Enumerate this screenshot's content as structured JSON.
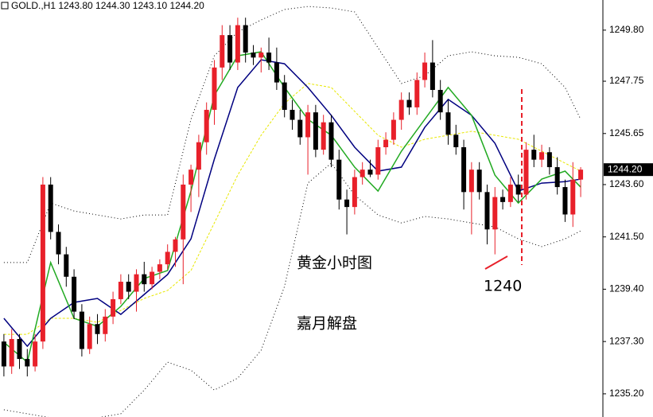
{
  "chart_data": {
    "type": "candlestick",
    "title": "GOLD.,H1  1243.80 1244.30 1243.10 1244.20",
    "annotations": [
      "1240",
      "黄金小时图",
      "嘉月解盘"
    ],
    "up_color": "#e8202a",
    "down_color": "#000000",
    "open": [
      1237.3,
      1236.3,
      1237.4,
      1236.6,
      1236.3,
      1237.3,
      1243.6,
      1241.7,
      1240.8,
      1239.9,
      1238.5,
      1237.0,
      1238.0,
      1237.6,
      1238.3,
      1239.0,
      1239.7,
      1239.3,
      1240.0,
      1239.6,
      1240.1,
      1240.4,
      1240.9,
      1241.4,
      1243.6,
      1244.2,
      1245.3,
      1246.6,
      1248.3,
      1249.6,
      1248.5,
      1250.0,
      1248.9,
      1248.7,
      1248.9,
      1248.5,
      1247.7,
      1246.6,
      1246.2,
      1245.5,
      1246.5,
      1245.0,
      1246.1,
      1244.6,
      1243.0,
      1242.7,
      1243.9,
      1244.2,
      1244.0,
      1245.1,
      1245.4,
      1246.2,
      1247.0,
      1246.7,
      1247.8,
      1248.5,
      1247.4,
      1246.5,
      1245.6,
      1245.1,
      1243.3,
      1244.2,
      1243.3,
      1241.8,
      1243.1,
      1242.9,
      1243.6,
      1243.2,
      1245.0,
      1244.6,
      1244.9,
      1244.3,
      1243.5,
      1242.4,
      1243.8
    ],
    "high": [
      1237.6,
      1237.8,
      1237.6,
      1237.0,
      1237.6,
      1243.9,
      1243.9,
      1242.0,
      1241.1,
      1240.2,
      1238.8,
      1238.3,
      1238.4,
      1238.6,
      1239.3,
      1240.0,
      1240.0,
      1240.2,
      1240.5,
      1240.3,
      1240.6,
      1241.2,
      1241.5,
      1244.0,
      1244.4,
      1245.6,
      1246.9,
      1248.6,
      1250.0,
      1250.0,
      1250.3,
      1250.3,
      1249.2,
      1249.1,
      1249.5,
      1249.1,
      1248.0,
      1247.0,
      1246.6,
      1246.8,
      1246.8,
      1246.4,
      1246.4,
      1245.0,
      1243.4,
      1244.2,
      1244.5,
      1244.6,
      1245.4,
      1245.7,
      1246.5,
      1247.3,
      1247.3,
      1248.1,
      1248.9,
      1249.4,
      1247.8,
      1247.0,
      1246.0,
      1245.4,
      1244.5,
      1244.5,
      1243.6,
      1243.5,
      1243.4,
      1243.9,
      1244.0,
      1245.3,
      1245.6,
      1245.2,
      1245.1,
      1244.7,
      1243.8,
      1244.5,
      1244.3
    ],
    "low": [
      1235.9,
      1236.0,
      1236.2,
      1235.9,
      1236.1,
      1237.0,
      1241.4,
      1240.4,
      1239.5,
      1238.2,
      1236.7,
      1236.8,
      1237.2,
      1237.3,
      1238.0,
      1238.8,
      1239.0,
      1238.5,
      1239.3,
      1239.4,
      1239.8,
      1240.2,
      1240.3,
      1239.6,
      1242.5,
      1243.1,
      1244.8,
      1246.0,
      1247.8,
      1248.2,
      1248.2,
      1248.5,
      1248.4,
      1248.1,
      1248.2,
      1247.4,
      1246.3,
      1245.8,
      1245.2,
      1244.0,
      1244.7,
      1244.8,
      1244.3,
      1242.6,
      1241.6,
      1242.4,
      1243.6,
      1243.9,
      1243.8,
      1244.8,
      1245.2,
      1245.8,
      1246.4,
      1246.4,
      1247.5,
      1247.1,
      1246.2,
      1245.2,
      1244.8,
      1242.6,
      1241.6,
      1243.0,
      1241.2,
      1240.8,
      1242.6,
      1242.7,
      1242.9,
      1243.0,
      1244.3,
      1244.3,
      1244.0,
      1243.2,
      1242.1,
      1241.9,
      1243.1
    ],
    "close": [
      1236.3,
      1237.4,
      1236.6,
      1236.3,
      1237.3,
      1243.6,
      1241.7,
      1240.8,
      1239.9,
      1238.5,
      1237.0,
      1238.0,
      1237.6,
      1238.3,
      1239.0,
      1239.7,
      1239.3,
      1240.0,
      1239.6,
      1240.1,
      1240.4,
      1240.9,
      1241.4,
      1243.6,
      1244.2,
      1245.3,
      1246.6,
      1248.3,
      1249.6,
      1248.5,
      1250.0,
      1248.9,
      1248.7,
      1248.9,
      1248.5,
      1247.7,
      1246.6,
      1246.2,
      1245.5,
      1246.5,
      1245.0,
      1246.1,
      1244.6,
      1243.0,
      1242.7,
      1243.9,
      1244.2,
      1244.0,
      1245.1,
      1245.4,
      1246.2,
      1247.0,
      1246.7,
      1247.8,
      1248.5,
      1247.4,
      1246.5,
      1245.6,
      1245.1,
      1243.3,
      1244.2,
      1243.3,
      1241.8,
      1243.1,
      1242.9,
      1243.6,
      1243.2,
      1245.0,
      1244.6,
      1244.9,
      1244.3,
      1243.5,
      1242.4,
      1243.8,
      1244.2
    ],
    "xlim": [
      -0.5,
      76.85
    ],
    "ylim": [
      1234.27,
      1251.01
    ],
    "yticks": [
      {
        "value": 1249.8,
        "label": "1249.80"
      },
      {
        "value": 1247.75,
        "label": "1247.75"
      },
      {
        "value": 1245.65,
        "label": "1245.65"
      },
      {
        "value": 1243.6,
        "label": "1243.60"
      },
      {
        "value": 1241.5,
        "label": "1241.50"
      },
      {
        "value": 1239.4,
        "label": "1239.40"
      },
      {
        "value": 1237.3,
        "label": "1237.30"
      },
      {
        "value": 1235.2,
        "label": "1235.20"
      }
    ],
    "last_price": {
      "value": 1244.2,
      "label": "1244.20"
    },
    "lines": {
      "x": [
        0,
        3,
        6,
        9,
        12,
        15,
        18,
        21,
        24,
        27,
        30,
        33,
        36,
        39,
        42,
        45,
        48,
        51,
        54,
        57,
        60,
        63,
        66,
        69,
        72,
        74
      ],
      "series": [
        {
          "color": "#000000",
          "style": "dotted",
          "values": [
            1240.47,
            1240.47,
            1242.86,
            1242.54,
            1242.38,
            1242.22,
            1242.38,
            1242.38,
            1246.22,
            1248.77,
            1249.73,
            1250.21,
            1250.63,
            1250.75,
            1250.69,
            1250.53,
            1249.09,
            1247.66,
            1247.97,
            1248.77,
            1248.93,
            1248.77,
            1248.71,
            1248.45,
            1247.5,
            1246.22
          ]
        },
        {
          "color": "#000000",
          "style": "dotted",
          "values": [
            1234.56,
            1234.4,
            1234.24,
            1234.24,
            1234.24,
            1234.4,
            1235.35,
            1236.47,
            1236.15,
            1235.35,
            1235.83,
            1236.95,
            1239.51,
            1243.66,
            1244.46,
            1243.18,
            1242.38,
            1242.06,
            1242.32,
            1242.22,
            1242.06,
            1241.9,
            1241.42,
            1241.11,
            1241.42,
            1241.74
          ]
        },
        {
          "color": "#e8e800",
          "style": "dashed",
          "values": [
            1237.59,
            1237.59,
            1238.23,
            1238.23,
            1238.07,
            1238.55,
            1239.03,
            1239.35,
            1240.15,
            1242.06,
            1243.98,
            1245.58,
            1246.86,
            1247.66,
            1247.5,
            1246.54,
            1245.58,
            1245.1,
            1245.42,
            1245.58,
            1245.74,
            1245.58,
            1245.42,
            1244.94,
            1244.46,
            1244.14
          ]
        },
        {
          "color": "#000080",
          "style": "solid",
          "values": [
            1238.23,
            1237.11,
            1238.23,
            1238.87,
            1239.03,
            1238.39,
            1239.19,
            1239.99,
            1241.42,
            1244.62,
            1247.5,
            1248.61,
            1248.45,
            1247.5,
            1246.38,
            1245.1,
            1244.14,
            1244.3,
            1245.9,
            1247.02,
            1246.38,
            1245.26,
            1243.34,
            1243.66,
            1243.72,
            1243.82
          ]
        },
        {
          "color": "#22aa22",
          "style": "solid",
          "values": [
            1237.27,
            1236.47,
            1240.47,
            1238.23,
            1237.91,
            1238.71,
            1239.83,
            1240.15,
            1243.34,
            1247.18,
            1248.77,
            1248.93,
            1247.5,
            1246.22,
            1245.58,
            1244.3,
            1243.34,
            1244.94,
            1246.22,
            1247.5,
            1246.38,
            1243.98,
            1242.86,
            1243.82,
            1244.14,
            1243.5
          ]
        }
      ]
    }
  }
}
